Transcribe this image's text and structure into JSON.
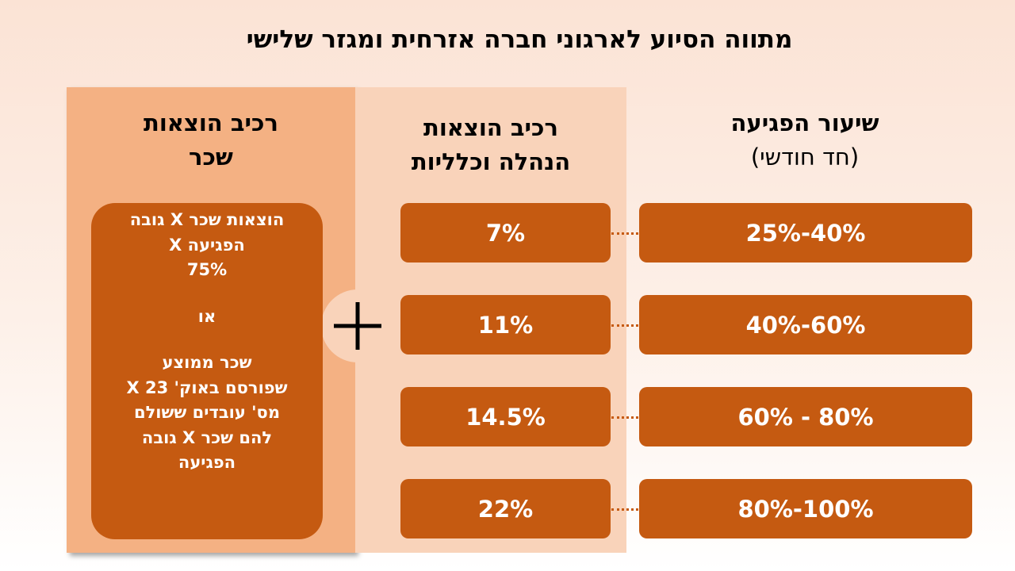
{
  "title": "מתווה הסיוע לארגוני חברה אזרחית ומגזר שלישי",
  "columns": {
    "damage": {
      "header": "שיעור הפגיעה",
      "subheader": "(חד חודשי)",
      "rows": [
        "25%-40%",
        "40%-60%",
        "60% - 80%",
        "80%-100%"
      ]
    },
    "admin": {
      "header_lines": [
        "רכיב הוצאות",
        "הנהלה וכלליות"
      ],
      "rows": [
        "7%",
        "11%",
        "14.5%",
        "22%"
      ]
    },
    "wage": {
      "header_lines": [
        "רכיב הוצאות",
        "שכר"
      ],
      "box_lines": [
        "הוצאות שכר X גובה",
        "הפגיעה X",
        "75%",
        "או",
        "שכר ממוצע",
        "שפורסם באוק' 23 X",
        "מס' עובדים ששולם",
        "להם שכר X גובה",
        "הפגיעה"
      ]
    }
  }
}
